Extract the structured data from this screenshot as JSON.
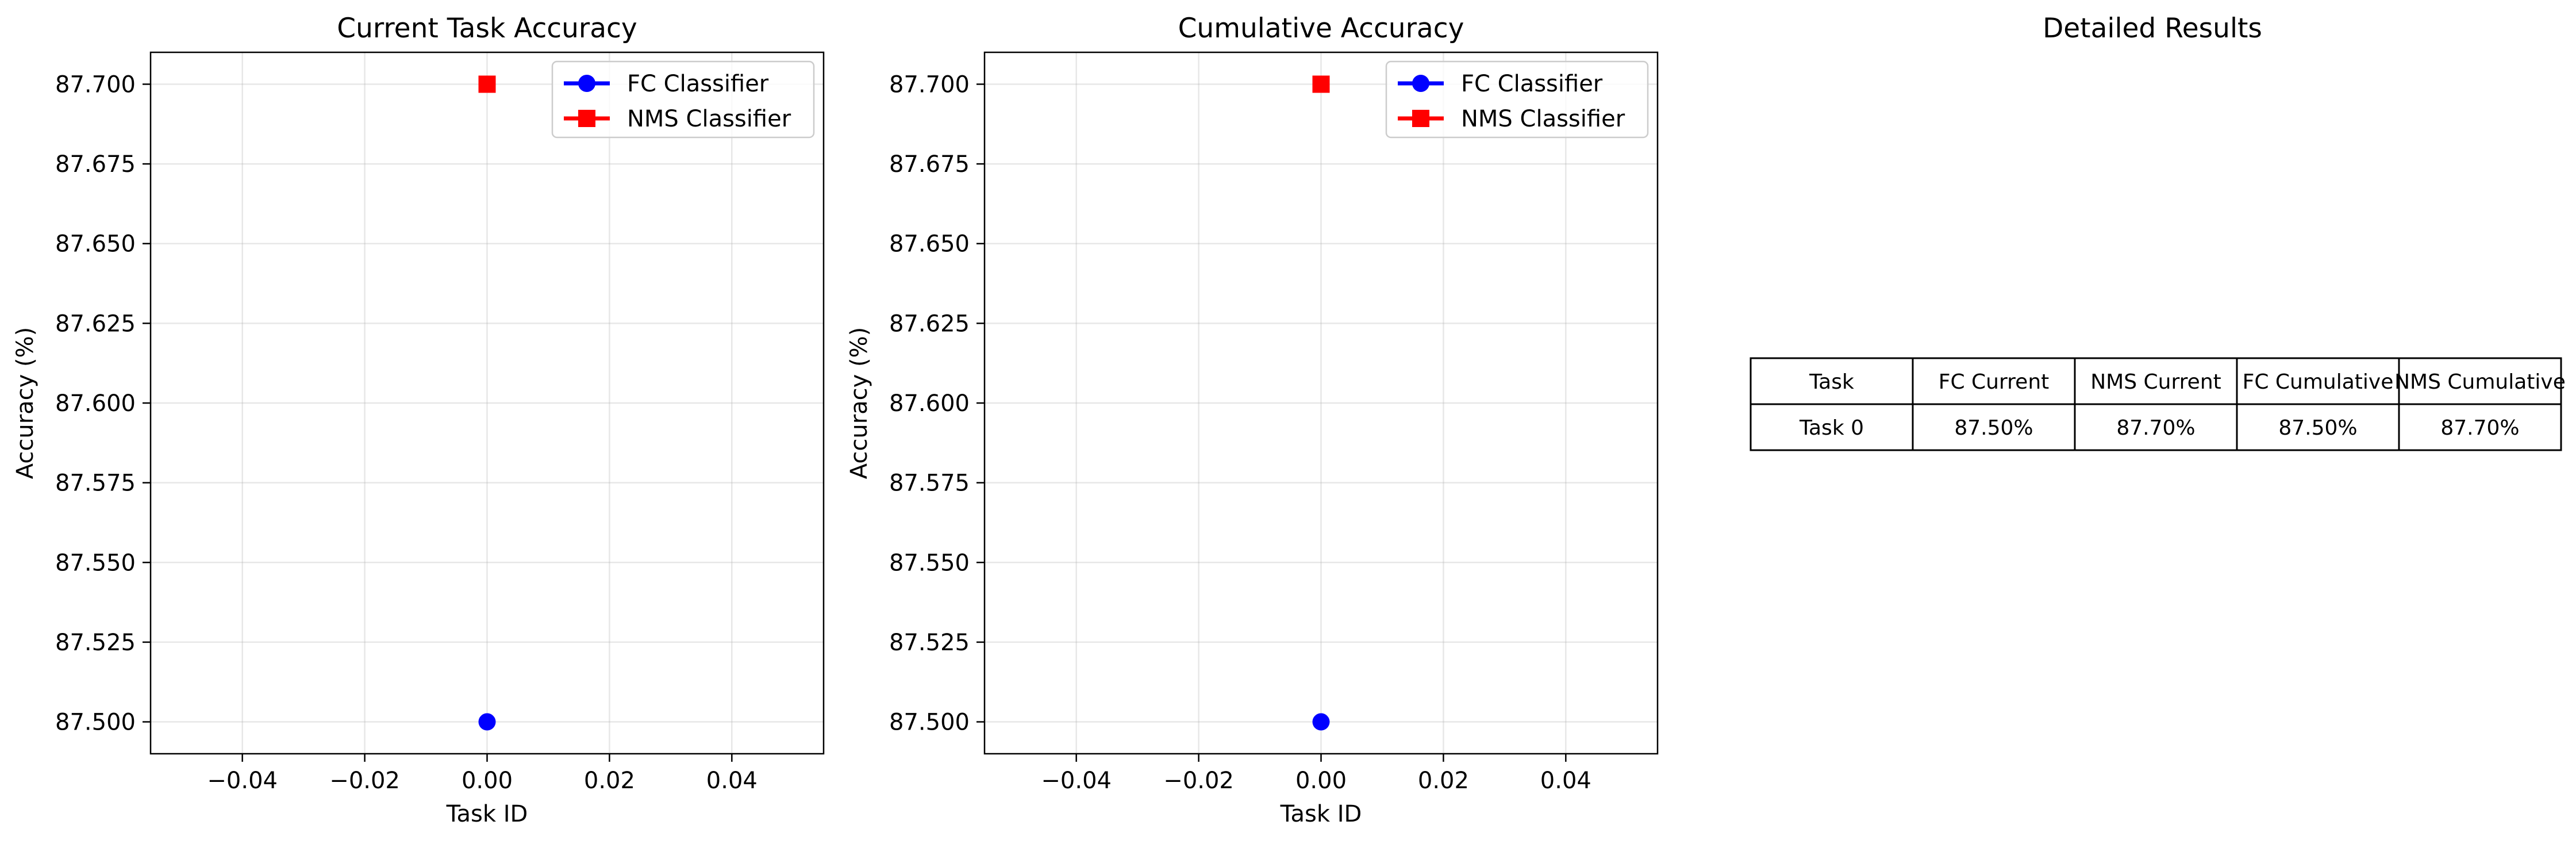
{
  "chart_data": [
    {
      "type": "line",
      "title": "Current Task Accuracy",
      "xlabel": "Task ID",
      "ylabel": "Accuracy (%)",
      "xlim": [
        -0.055,
        0.055
      ],
      "ylim": [
        87.49,
        87.71
      ],
      "xticks": [
        -0.04,
        -0.02,
        0.0,
        0.02,
        0.04
      ],
      "xtick_labels": [
        "−0.04",
        "−0.02",
        "0.00",
        "0.02",
        "0.04"
      ],
      "yticks": [
        87.5,
        87.525,
        87.55,
        87.575,
        87.6,
        87.625,
        87.65,
        87.675,
        87.7
      ],
      "ytick_labels": [
        "87.500",
        "87.525",
        "87.550",
        "87.575",
        "87.600",
        "87.625",
        "87.650",
        "87.675",
        "87.700"
      ],
      "grid": true,
      "legend_position": "top-right",
      "series": [
        {
          "name": "FC Classifier",
          "x": [
            0
          ],
          "y": [
            87.5
          ],
          "color": "#0000ff",
          "marker": "circle"
        },
        {
          "name": "NMS Classifier",
          "x": [
            0
          ],
          "y": [
            87.7
          ],
          "color": "#ff0000",
          "marker": "square"
        }
      ]
    },
    {
      "type": "line",
      "title": "Cumulative Accuracy",
      "xlabel": "Task ID",
      "ylabel": "Accuracy (%)",
      "xlim": [
        -0.055,
        0.055
      ],
      "ylim": [
        87.49,
        87.71
      ],
      "xticks": [
        -0.04,
        -0.02,
        0.0,
        0.02,
        0.04
      ],
      "xtick_labels": [
        "−0.04",
        "−0.02",
        "0.00",
        "0.02",
        "0.04"
      ],
      "yticks": [
        87.5,
        87.525,
        87.55,
        87.575,
        87.6,
        87.625,
        87.65,
        87.675,
        87.7
      ],
      "ytick_labels": [
        "87.500",
        "87.525",
        "87.550",
        "87.575",
        "87.600",
        "87.625",
        "87.650",
        "87.675",
        "87.700"
      ],
      "grid": true,
      "legend_position": "top-right",
      "series": [
        {
          "name": "FC Classifier",
          "x": [
            0
          ],
          "y": [
            87.5
          ],
          "color": "#0000ff",
          "marker": "circle"
        },
        {
          "name": "NMS Classifier",
          "x": [
            0
          ],
          "y": [
            87.7
          ],
          "color": "#ff0000",
          "marker": "square"
        }
      ]
    },
    {
      "type": "table",
      "title": "Detailed Results",
      "columns": [
        "Task",
        "FC Current",
        "NMS Current",
        "FC Cumulative",
        "NMS Cumulative"
      ],
      "rows": [
        [
          "Task 0",
          "87.50%",
          "87.70%",
          "87.50%",
          "87.70%"
        ]
      ]
    }
  ]
}
